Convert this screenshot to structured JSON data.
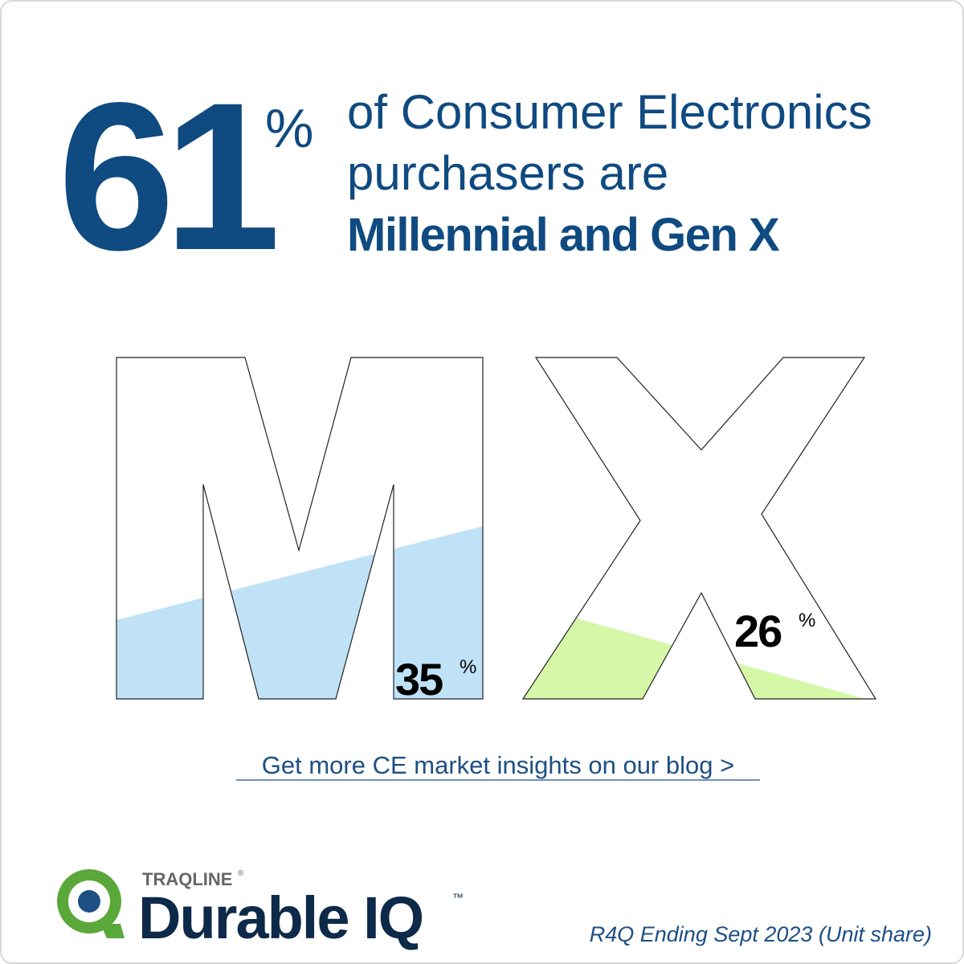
{
  "headline": {
    "value": 61,
    "unit": "%",
    "lines": [
      "of Consumer Electronics",
      "purchasers are",
      "Millennial and Gen X"
    ]
  },
  "stats": [
    {
      "value": 35,
      "unit": "%"
    },
    {
      "value": 26,
      "unit": "%"
    }
  ],
  "link": "Get more CE market insights on our blog >",
  "logo": {
    "brand": "TRAQLINE",
    "registered": "®",
    "product": "Durable IQ",
    "trademark": "™"
  },
  "footnote": "R4Q Ending Sept 2023 (Unit share)"
}
